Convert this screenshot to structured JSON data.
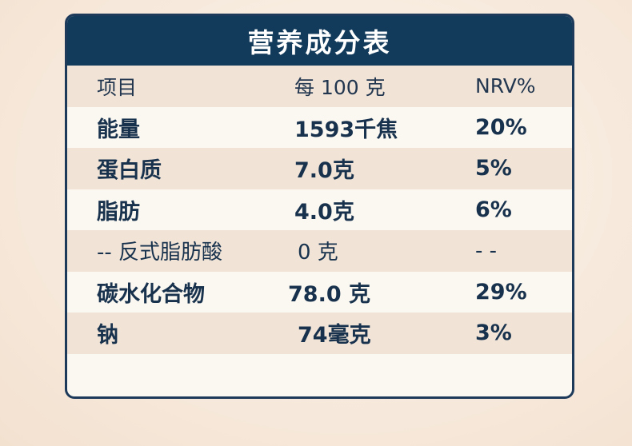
{
  "table": {
    "title": "营养成分表",
    "header": {
      "item": "项目",
      "per100": "每 100 克",
      "nrv": "NRV%"
    },
    "rows": [
      {
        "item": "能量",
        "amount": "1593千焦",
        "nrv": "20%"
      },
      {
        "item": "蛋白质",
        "amount": "7.0克",
        "nrv": "5%"
      },
      {
        "item": "脂肪",
        "amount": "4.0克",
        "nrv": "6%"
      },
      {
        "item": "-- 反式脂肪酸",
        "amount": "0 克",
        "nrv": "- -"
      },
      {
        "item": "碳水化合物",
        "amount": "78.0 克",
        "nrv": "29%"
      },
      {
        "item": "钠",
        "amount": "74毫克",
        "nrv": "3%"
      }
    ]
  },
  "colors": {
    "title_bar": "#123a5b",
    "border": "#1d3a5a",
    "text": "#18324d",
    "row_shade": "#f1e4d7",
    "row_light": "#fbf7f1"
  }
}
